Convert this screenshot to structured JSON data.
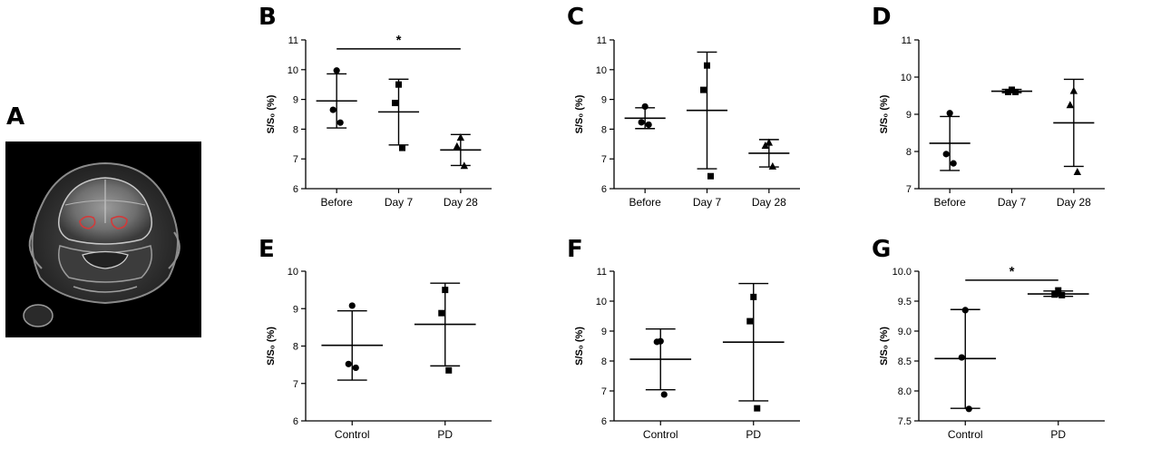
{
  "figure": {
    "panel_a": {
      "label": "A"
    }
  },
  "chart_data": [
    {
      "id": "B",
      "label": "B",
      "type": "scatter",
      "ylabel": "S/S₀ (%)",
      "ylim": [
        6,
        11
      ],
      "yticks": [
        "6",
        "7",
        "8",
        "9",
        "10",
        "11"
      ],
      "categories": [
        "Before",
        "Day 7",
        "Day 28"
      ],
      "groups": [
        {
          "name": "Before",
          "marker": "circle",
          "mean": 8.95,
          "sd_low": 8.04,
          "sd_high": 9.86,
          "points": [
            9.97,
            8.65,
            8.22
          ]
        },
        {
          "name": "Day 7",
          "marker": "square",
          "mean": 8.58,
          "sd_low": 7.47,
          "sd_high": 9.68,
          "points": [
            9.5,
            8.88,
            7.37
          ]
        },
        {
          "name": "Day 28",
          "marker": "triangle",
          "mean": 7.3,
          "sd_low": 6.78,
          "sd_high": 7.82,
          "points": [
            7.72,
            7.42,
            6.77
          ]
        }
      ],
      "significance": [
        {
          "from": 0,
          "to": 2,
          "y": 10.7,
          "label": "*"
        }
      ]
    },
    {
      "id": "C",
      "label": "C",
      "type": "scatter",
      "ylabel": "S/S₀ (%)",
      "ylim": [
        6,
        11
      ],
      "yticks": [
        "6",
        "7",
        "8",
        "9",
        "10",
        "11"
      ],
      "categories": [
        "Before",
        "Day 7",
        "Day 28"
      ],
      "groups": [
        {
          "name": "Before",
          "marker": "circle",
          "mean": 8.37,
          "sd_low": 8.02,
          "sd_high": 8.72,
          "points": [
            8.76,
            8.23,
            8.15
          ]
        },
        {
          "name": "Day 7",
          "marker": "square",
          "mean": 8.63,
          "sd_low": 6.67,
          "sd_high": 10.59,
          "points": [
            10.14,
            9.32,
            6.42
          ]
        },
        {
          "name": "Day 28",
          "marker": "triangle",
          "mean": 7.19,
          "sd_low": 6.73,
          "sd_high": 7.65,
          "points": [
            7.55,
            7.45,
            6.75
          ]
        }
      ],
      "significance": []
    },
    {
      "id": "D",
      "label": "D",
      "type": "scatter",
      "ylabel": "S/S₀ (%)",
      "ylim": [
        7,
        11
      ],
      "yticks": [
        "7",
        "8",
        "9",
        "10",
        "11"
      ],
      "categories": [
        "Before",
        "Day 7",
        "Day 28"
      ],
      "groups": [
        {
          "name": "Before",
          "marker": "circle",
          "mean": 8.22,
          "sd_low": 7.49,
          "sd_high": 8.94,
          "points": [
            9.03,
            7.93,
            7.68
          ]
        },
        {
          "name": "Day 7",
          "marker": "square",
          "mean": 9.62,
          "sd_low": 9.58,
          "sd_high": 9.67,
          "points": [
            9.66,
            9.6,
            9.6
          ]
        },
        {
          "name": "Day 28",
          "marker": "triangle",
          "mean": 8.77,
          "sd_low": 7.6,
          "sd_high": 9.94,
          "points": [
            9.63,
            9.25,
            7.45
          ]
        }
      ],
      "significance": []
    },
    {
      "id": "E",
      "label": "E",
      "type": "scatter",
      "ylabel": "S/S₀ (%)",
      "ylim": [
        6,
        10
      ],
      "yticks": [
        "6",
        "7",
        "8",
        "9",
        "10"
      ],
      "categories": [
        "Control",
        "PD"
      ],
      "groups": [
        {
          "name": "Control",
          "marker": "circle",
          "mean": 8.02,
          "sd_low": 7.09,
          "sd_high": 8.94,
          "points": [
            9.08,
            7.52,
            7.42
          ]
        },
        {
          "name": "PD",
          "marker": "square",
          "mean": 8.58,
          "sd_low": 7.47,
          "sd_high": 9.68,
          "points": [
            9.5,
            8.88,
            7.35
          ]
        }
      ],
      "significance": []
    },
    {
      "id": "F",
      "label": "F",
      "type": "scatter",
      "ylabel": "S/S₀ (%)",
      "ylim": [
        6,
        11
      ],
      "yticks": [
        "6",
        "7",
        "8",
        "9",
        "10",
        "11"
      ],
      "categories": [
        "Control",
        "PD"
      ],
      "groups": [
        {
          "name": "Control",
          "marker": "circle",
          "mean": 8.06,
          "sd_low": 7.04,
          "sd_high": 9.07,
          "points": [
            8.66,
            8.64,
            6.88
          ]
        },
        {
          "name": "PD",
          "marker": "square",
          "mean": 8.63,
          "sd_low": 6.67,
          "sd_high": 10.59,
          "points": [
            10.14,
            9.33,
            6.42
          ]
        }
      ],
      "significance": []
    },
    {
      "id": "G",
      "label": "G",
      "type": "scatter",
      "ylabel": "S/S₀ (%)",
      "ylim": [
        7.5,
        10.0
      ],
      "yticks": [
        "7.5",
        "8.0",
        "8.5",
        "9.0",
        "9.5",
        "10.0"
      ],
      "categories": [
        "Control",
        "PD"
      ],
      "groups": [
        {
          "name": "Control",
          "marker": "circle",
          "mean": 8.54,
          "sd_low": 7.71,
          "sd_high": 9.36,
          "points": [
            9.35,
            8.56,
            7.7
          ]
        },
        {
          "name": "PD",
          "marker": "square",
          "mean": 9.62,
          "sd_low": 9.58,
          "sd_high": 9.67,
          "points": [
            9.68,
            9.61,
            9.6
          ]
        }
      ],
      "significance": [
        {
          "from": 0,
          "to": 1,
          "y": 9.85,
          "label": "*"
        }
      ]
    }
  ]
}
